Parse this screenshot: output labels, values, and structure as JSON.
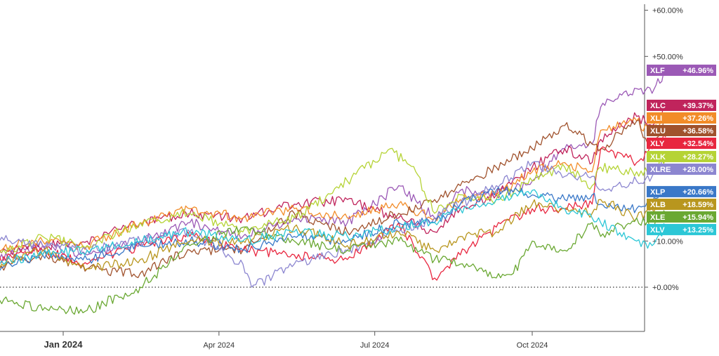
{
  "chart_data": {
    "type": "line",
    "title": "",
    "xlabel": "",
    "ylabel": "",
    "y_unit": "percent",
    "ylim": [
      -10,
      61
    ],
    "y_ticks": [
      0,
      10,
      50,
      60
    ],
    "y_tick_labels": [
      "+0.00%",
      "+10.00%",
      "+50.00%",
      "+60.00%"
    ],
    "x_ticks": [
      {
        "date": "2024-01-01",
        "label": "Jan 2024"
      },
      {
        "date": "2024-04-01",
        "label": "Apr 2024"
      },
      {
        "date": "2024-07-01",
        "label": "Jul 2024"
      },
      {
        "date": "2024-10-01",
        "label": "Oct 2024"
      }
    ],
    "x_range": [
      "2023-10-31",
      "2024-12-31"
    ],
    "baseline": {
      "value": 0,
      "style": "dotted"
    },
    "grid": false,
    "legend": "right-labels",
    "series": [
      {
        "name": "XLF",
        "label": "+46.96%",
        "color": "#9b59b6",
        "points": [
          [
            "2023-10-31",
            0
          ],
          [
            "2023-11-15",
            4
          ],
          [
            "2023-12-01",
            7
          ],
          [
            "2023-12-20",
            9
          ],
          [
            "2024-01-15",
            7
          ],
          [
            "2024-02-15",
            10
          ],
          [
            "2024-03-15",
            14
          ],
          [
            "2024-04-15",
            11
          ],
          [
            "2024-05-15",
            15
          ],
          [
            "2024-06-15",
            14
          ],
          [
            "2024-07-15",
            22
          ],
          [
            "2024-08-05",
            15
          ],
          [
            "2024-08-20",
            21
          ],
          [
            "2024-09-10",
            20
          ],
          [
            "2024-10-01",
            23
          ],
          [
            "2024-10-20",
            30
          ],
          [
            "2024-11-05",
            31
          ],
          [
            "2024-11-10",
            39
          ],
          [
            "2024-12-01",
            43
          ],
          [
            "2024-12-10",
            42
          ],
          [
            "2024-12-18",
            47
          ]
        ]
      },
      {
        "name": "XLC",
        "label": "+39.37%",
        "color": "#c0245c",
        "points": [
          [
            "2023-10-31",
            0
          ],
          [
            "2023-11-15",
            5
          ],
          [
            "2023-12-01",
            8
          ],
          [
            "2023-12-20",
            9
          ],
          [
            "2024-01-15",
            10
          ],
          [
            "2024-02-15",
            14
          ],
          [
            "2024-03-15",
            16
          ],
          [
            "2024-04-15",
            15
          ],
          [
            "2024-05-15",
            18
          ],
          [
            "2024-06-15",
            19
          ],
          [
            "2024-07-15",
            15
          ],
          [
            "2024-08-05",
            12
          ],
          [
            "2024-08-20",
            17
          ],
          [
            "2024-09-10",
            20
          ],
          [
            "2024-10-01",
            26
          ],
          [
            "2024-10-20",
            30
          ],
          [
            "2024-11-05",
            27
          ],
          [
            "2024-11-10",
            32
          ],
          [
            "2024-12-01",
            37
          ],
          [
            "2024-12-10",
            35
          ],
          [
            "2024-12-18",
            39.4
          ]
        ]
      },
      {
        "name": "XLI",
        "label": "+37.26%",
        "color": "#f28c28",
        "points": [
          [
            "2023-10-31",
            0
          ],
          [
            "2023-11-15",
            6
          ],
          [
            "2023-12-01",
            9
          ],
          [
            "2023-12-20",
            10
          ],
          [
            "2024-01-15",
            9
          ],
          [
            "2024-02-15",
            14
          ],
          [
            "2024-03-15",
            17
          ],
          [
            "2024-04-15",
            15
          ],
          [
            "2024-05-15",
            17
          ],
          [
            "2024-06-15",
            15
          ],
          [
            "2024-07-15",
            18
          ],
          [
            "2024-08-05",
            15
          ],
          [
            "2024-08-20",
            19
          ],
          [
            "2024-09-10",
            20
          ],
          [
            "2024-10-01",
            25
          ],
          [
            "2024-10-20",
            27
          ],
          [
            "2024-11-05",
            25
          ],
          [
            "2024-11-10",
            34
          ],
          [
            "2024-12-01",
            36
          ],
          [
            "2024-12-10",
            33
          ],
          [
            "2024-12-18",
            37.3
          ]
        ]
      },
      {
        "name": "XLU",
        "label": "+36.58%",
        "color": "#a0522d",
        "points": [
          [
            "2023-10-31",
            0
          ],
          [
            "2023-11-15",
            2
          ],
          [
            "2023-12-01",
            5
          ],
          [
            "2023-12-20",
            7
          ],
          [
            "2024-01-15",
            4
          ],
          [
            "2024-02-15",
            3
          ],
          [
            "2024-03-15",
            8
          ],
          [
            "2024-04-15",
            8
          ],
          [
            "2024-05-15",
            16
          ],
          [
            "2024-06-15",
            12
          ],
          [
            "2024-07-15",
            16
          ],
          [
            "2024-08-05",
            19
          ],
          [
            "2024-08-20",
            22
          ],
          [
            "2024-09-10",
            26
          ],
          [
            "2024-10-01",
            30
          ],
          [
            "2024-10-20",
            35
          ],
          [
            "2024-11-05",
            31
          ],
          [
            "2024-11-10",
            30
          ],
          [
            "2024-12-01",
            36
          ],
          [
            "2024-12-10",
            30
          ],
          [
            "2024-12-18",
            36.6
          ]
        ]
      },
      {
        "name": "XLY",
        "label": "+32.54%",
        "color": "#e8263f",
        "points": [
          [
            "2023-10-31",
            0
          ],
          [
            "2023-11-15",
            5
          ],
          [
            "2023-12-01",
            7
          ],
          [
            "2023-12-20",
            8
          ],
          [
            "2024-01-15",
            5
          ],
          [
            "2024-02-15",
            9
          ],
          [
            "2024-03-15",
            11
          ],
          [
            "2024-04-15",
            8
          ],
          [
            "2024-05-15",
            7
          ],
          [
            "2024-06-15",
            6
          ],
          [
            "2024-07-15",
            14
          ],
          [
            "2024-08-05",
            2
          ],
          [
            "2024-08-20",
            7
          ],
          [
            "2024-09-10",
            13
          ],
          [
            "2024-10-01",
            17
          ],
          [
            "2024-10-20",
            17
          ],
          [
            "2024-11-05",
            18
          ],
          [
            "2024-11-10",
            30
          ],
          [
            "2024-12-01",
            27
          ],
          [
            "2024-12-10",
            30
          ],
          [
            "2024-12-18",
            32.5
          ]
        ]
      },
      {
        "name": "XLK",
        "label": "+28.27%",
        "color": "#b5d335",
        "points": [
          [
            "2023-10-31",
            0
          ],
          [
            "2023-11-15",
            5
          ],
          [
            "2023-12-01",
            8
          ],
          [
            "2023-12-20",
            11
          ],
          [
            "2024-01-15",
            9
          ],
          [
            "2024-02-15",
            14
          ],
          [
            "2024-03-15",
            16
          ],
          [
            "2024-04-15",
            12
          ],
          [
            "2024-05-15",
            15
          ],
          [
            "2024-06-15",
            23
          ],
          [
            "2024-07-10",
            30
          ],
          [
            "2024-07-25",
            25
          ],
          [
            "2024-08-05",
            16
          ],
          [
            "2024-08-20",
            20
          ],
          [
            "2024-09-10",
            19
          ],
          [
            "2024-10-01",
            23
          ],
          [
            "2024-10-20",
            26
          ],
          [
            "2024-11-05",
            22
          ],
          [
            "2024-11-10",
            26
          ],
          [
            "2024-12-01",
            25
          ],
          [
            "2024-12-10",
            25
          ],
          [
            "2024-12-18",
            28.3
          ]
        ]
      },
      {
        "name": "XLRE",
        "label": "+28.00%",
        "color": "#8c86d0",
        "points": [
          [
            "2023-10-31",
            0
          ],
          [
            "2023-11-10",
            4
          ],
          [
            "2023-11-20",
            12
          ],
          [
            "2023-12-01",
            10
          ],
          [
            "2023-12-20",
            9
          ],
          [
            "2024-01-15",
            8
          ],
          [
            "2024-02-15",
            10
          ],
          [
            "2024-03-15",
            12
          ],
          [
            "2024-04-15",
            5
          ],
          [
            "2024-04-20",
            0
          ],
          [
            "2024-05-15",
            5
          ],
          [
            "2024-06-15",
            8
          ],
          [
            "2024-07-15",
            12
          ],
          [
            "2024-08-05",
            15
          ],
          [
            "2024-08-20",
            18
          ],
          [
            "2024-09-10",
            22
          ],
          [
            "2024-10-01",
            27
          ],
          [
            "2024-10-20",
            24
          ],
          [
            "2024-11-05",
            24
          ],
          [
            "2024-11-10",
            21
          ],
          [
            "2024-12-01",
            23
          ],
          [
            "2024-12-10",
            24
          ],
          [
            "2024-12-18",
            28
          ]
        ]
      },
      {
        "name": "XLP",
        "label": "+20.66%",
        "color": "#3a78c8",
        "points": [
          [
            "2023-10-31",
            0
          ],
          [
            "2023-11-15",
            2
          ],
          [
            "2023-12-01",
            5
          ],
          [
            "2023-12-20",
            7
          ],
          [
            "2024-01-15",
            6
          ],
          [
            "2024-02-15",
            9
          ],
          [
            "2024-03-15",
            10
          ],
          [
            "2024-04-15",
            8
          ],
          [
            "2024-05-15",
            11
          ],
          [
            "2024-06-15",
            10
          ],
          [
            "2024-07-15",
            14
          ],
          [
            "2024-08-05",
            14
          ],
          [
            "2024-08-20",
            18
          ],
          [
            "2024-09-10",
            21
          ],
          [
            "2024-10-01",
            20
          ],
          [
            "2024-10-20",
            19
          ],
          [
            "2024-11-05",
            20
          ],
          [
            "2024-11-10",
            18
          ],
          [
            "2024-12-01",
            17
          ],
          [
            "2024-12-10",
            18
          ],
          [
            "2024-12-18",
            20.7
          ]
        ]
      },
      {
        "name": "XLB",
        "label": "+18.59%",
        "color": "#b8961e",
        "points": [
          [
            "2023-10-31",
            0
          ],
          [
            "2023-11-15",
            3
          ],
          [
            "2023-12-01",
            6
          ],
          [
            "2023-12-20",
            8
          ],
          [
            "2024-01-15",
            4
          ],
          [
            "2024-02-15",
            6
          ],
          [
            "2024-03-15",
            10
          ],
          [
            "2024-04-15",
            10
          ],
          [
            "2024-05-15",
            13
          ],
          [
            "2024-06-15",
            9
          ],
          [
            "2024-07-15",
            12
          ],
          [
            "2024-08-05",
            8
          ],
          [
            "2024-08-20",
            11
          ],
          [
            "2024-09-10",
            12
          ],
          [
            "2024-10-01",
            18
          ],
          [
            "2024-10-20",
            17
          ],
          [
            "2024-11-05",
            16
          ],
          [
            "2024-11-10",
            19
          ],
          [
            "2024-12-01",
            15
          ],
          [
            "2024-12-10",
            17
          ],
          [
            "2024-12-18",
            18.6
          ]
        ]
      },
      {
        "name": "XLE",
        "label": "+15.94%",
        "color": "#6aa832",
        "points": [
          [
            "2023-10-31",
            0
          ],
          [
            "2023-11-10",
            -4
          ],
          [
            "2023-11-20",
            -2
          ],
          [
            "2023-12-01",
            -3
          ],
          [
            "2023-12-20",
            -5
          ],
          [
            "2024-01-15",
            -5
          ],
          [
            "2024-02-15",
            0
          ],
          [
            "2024-03-15",
            9
          ],
          [
            "2024-04-15",
            13
          ],
          [
            "2024-05-15",
            10
          ],
          [
            "2024-06-15",
            8
          ],
          [
            "2024-07-15",
            10
          ],
          [
            "2024-08-05",
            6
          ],
          [
            "2024-08-20",
            5
          ],
          [
            "2024-09-10",
            2
          ],
          [
            "2024-09-20",
            3
          ],
          [
            "2024-10-01",
            10
          ],
          [
            "2024-10-20",
            8
          ],
          [
            "2024-11-05",
            14
          ],
          [
            "2024-11-10",
            11
          ],
          [
            "2024-12-01",
            15
          ],
          [
            "2024-12-10",
            13
          ],
          [
            "2024-12-18",
            15.9
          ]
        ]
      },
      {
        "name": "XLV",
        "label": "+13.25%",
        "color": "#2cc7d6",
        "points": [
          [
            "2023-10-31",
            0
          ],
          [
            "2023-11-15",
            3
          ],
          [
            "2023-12-01",
            6
          ],
          [
            "2023-12-20",
            7
          ],
          [
            "2024-01-15",
            8
          ],
          [
            "2024-02-15",
            10
          ],
          [
            "2024-03-15",
            12
          ],
          [
            "2024-04-15",
            10
          ],
          [
            "2024-05-15",
            12
          ],
          [
            "2024-06-15",
            11
          ],
          [
            "2024-07-15",
            13
          ],
          [
            "2024-08-05",
            14
          ],
          [
            "2024-08-20",
            17
          ],
          [
            "2024-09-10",
            19
          ],
          [
            "2024-10-01",
            21
          ],
          [
            "2024-10-20",
            17
          ],
          [
            "2024-11-05",
            15
          ],
          [
            "2024-11-10",
            14
          ],
          [
            "2024-12-01",
            10
          ],
          [
            "2024-12-10",
            9
          ],
          [
            "2024-12-18",
            13.25
          ]
        ]
      }
    ]
  }
}
